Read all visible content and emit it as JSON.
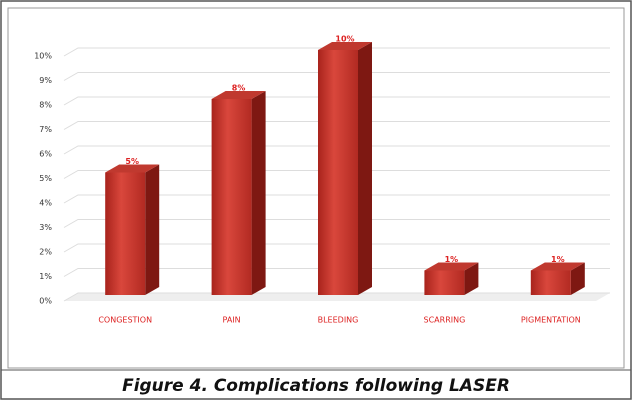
{
  "chart_data": {
    "type": "bar3d",
    "title": "Figure 4. Complications following LASER",
    "categories": [
      "CONGESTION",
      "PAIN",
      "BLEEDING",
      "SCARRING",
      "PIGMENTATION"
    ],
    "values": [
      5,
      8,
      10,
      1,
      1
    ],
    "value_labels": [
      "5%",
      "8%",
      "10%",
      "1%",
      "1%"
    ],
    "color": "#c0392f",
    "ylim": [
      0,
      10
    ],
    "yticks": [
      {
        "value": 0,
        "label": "0%"
      },
      {
        "value": 1,
        "label": "1%"
      },
      {
        "value": 2,
        "label": "2%"
      },
      {
        "value": 3,
        "label": "3%"
      },
      {
        "value": 4,
        "label": "4%"
      },
      {
        "value": 5,
        "label": "5%"
      },
      {
        "value": 6,
        "label": "6%"
      },
      {
        "value": 7,
        "label": "7%"
      },
      {
        "value": 8,
        "label": "8%"
      },
      {
        "value": 9,
        "label": "9%"
      },
      {
        "value": 10,
        "label": "10%"
      }
    ],
    "grid": true
  }
}
